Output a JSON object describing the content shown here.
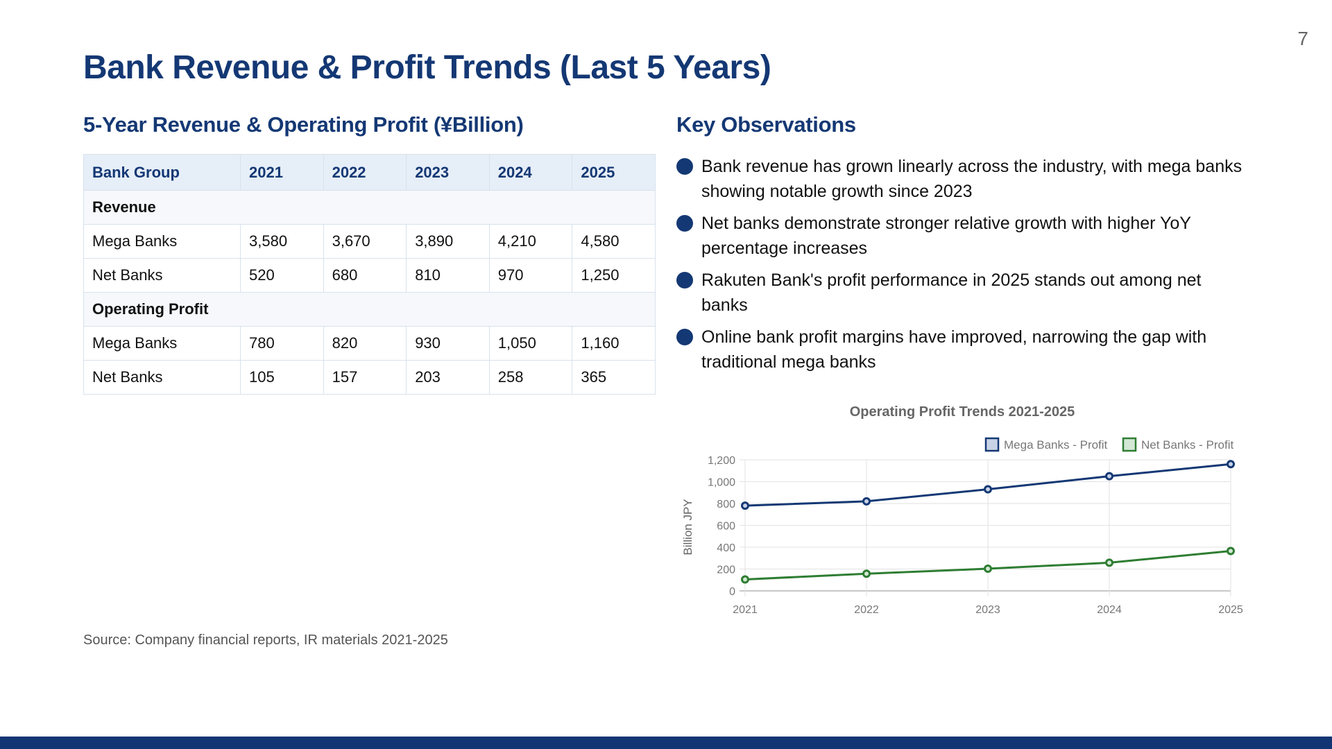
{
  "page": {
    "number": "7",
    "title": "Bank Revenue & Profit Trends (Last 5 Years)",
    "source": "Source: Company financial reports, IR materials 2021-2025"
  },
  "colors": {
    "primary": "#143874",
    "mega_banks": "#143874",
    "net_banks": "#2e7d32",
    "bottom_bar": "#123673"
  },
  "table": {
    "heading": "5-Year Revenue & Operating Profit (¥Billion)",
    "columns": [
      "Bank Group",
      "2021",
      "2022",
      "2023",
      "2024",
      "2025"
    ],
    "groups": [
      {
        "label": "Revenue",
        "rows": [
          {
            "name": "Mega Banks",
            "values": [
              "3,580",
              "3,670",
              "3,890",
              "4,210",
              "4,580"
            ]
          },
          {
            "name": "Net Banks",
            "values": [
              "520",
              "680",
              "810",
              "970",
              "1,250"
            ]
          }
        ]
      },
      {
        "label": "Operating Profit",
        "rows": [
          {
            "name": "Mega Banks",
            "values": [
              "780",
              "820",
              "930",
              "1,050",
              "1,160"
            ]
          },
          {
            "name": "Net Banks",
            "values": [
              "105",
              "157",
              "203",
              "258",
              "365"
            ]
          }
        ]
      }
    ]
  },
  "observations": {
    "heading": "Key Observations",
    "items": [
      "Bank revenue has grown linearly across the industry, with mega banks showing notable growth since 2023",
      "Net banks demonstrate stronger relative growth with higher YoY percentage increases",
      "Rakuten Bank's profit performance in 2025 stands out among net banks",
      "Online bank profit margins have improved, narrowing the gap with traditional mega banks"
    ]
  },
  "chart_data": {
    "type": "line",
    "title": "Operating Profit Trends 2021-2025",
    "xlabel": "",
    "ylabel": "Billion JPY",
    "x": [
      "2021",
      "2022",
      "2023",
      "2024",
      "2025"
    ],
    "ylim": [
      0,
      1200
    ],
    "yticks": [
      0,
      200,
      400,
      600,
      800,
      1000,
      1200
    ],
    "ytick_labels": [
      "0",
      "200",
      "400",
      "600",
      "800",
      "1,000",
      "1,200"
    ],
    "grid": true,
    "legend_position": "top-right",
    "series": [
      {
        "name": "Mega Banks - Profit",
        "color": "#143874",
        "fill": "#c9d3e6",
        "values": [
          780,
          820,
          930,
          1050,
          1160
        ]
      },
      {
        "name": "Net Banks - Profit",
        "color": "#2e7d32",
        "fill": "#d3e8d4",
        "values": [
          105,
          157,
          203,
          258,
          365
        ]
      }
    ]
  }
}
